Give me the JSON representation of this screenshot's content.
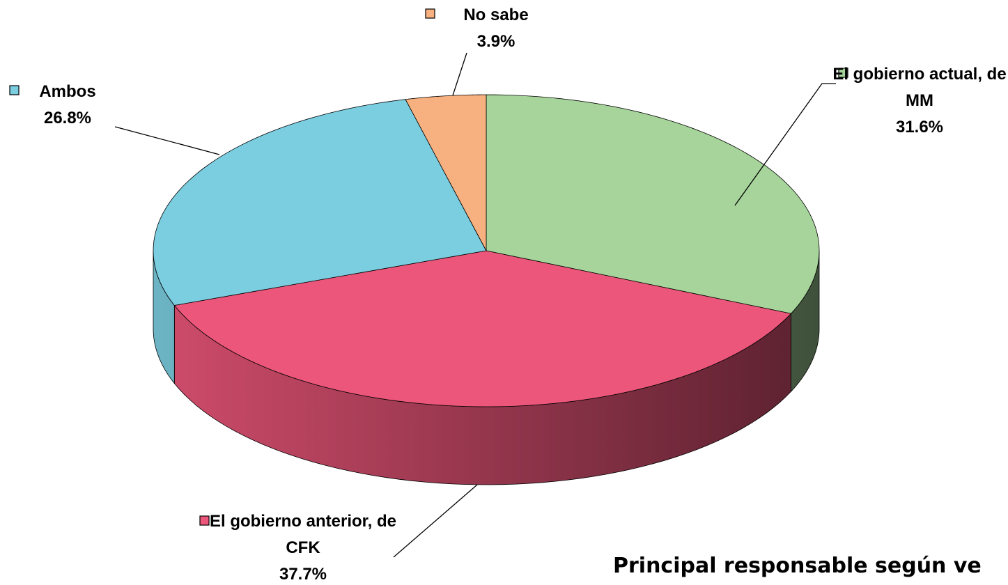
{
  "chart_data": {
    "type": "pie3d",
    "title": "Principal responsable según ve",
    "categories": [
      "El gobierno actual, de MM",
      "El gobierno anterior, de CFK",
      "Ambos",
      "No sabe"
    ],
    "values": [
      31.6,
      37.7,
      26.8,
      3.9
    ],
    "value_labels": [
      "31.6%",
      "37.7%",
      "26.8%",
      "3.9%"
    ],
    "colors": [
      "#a6d49a",
      "#ec567a",
      "#7bcde0",
      "#f7b07f"
    ]
  }
}
